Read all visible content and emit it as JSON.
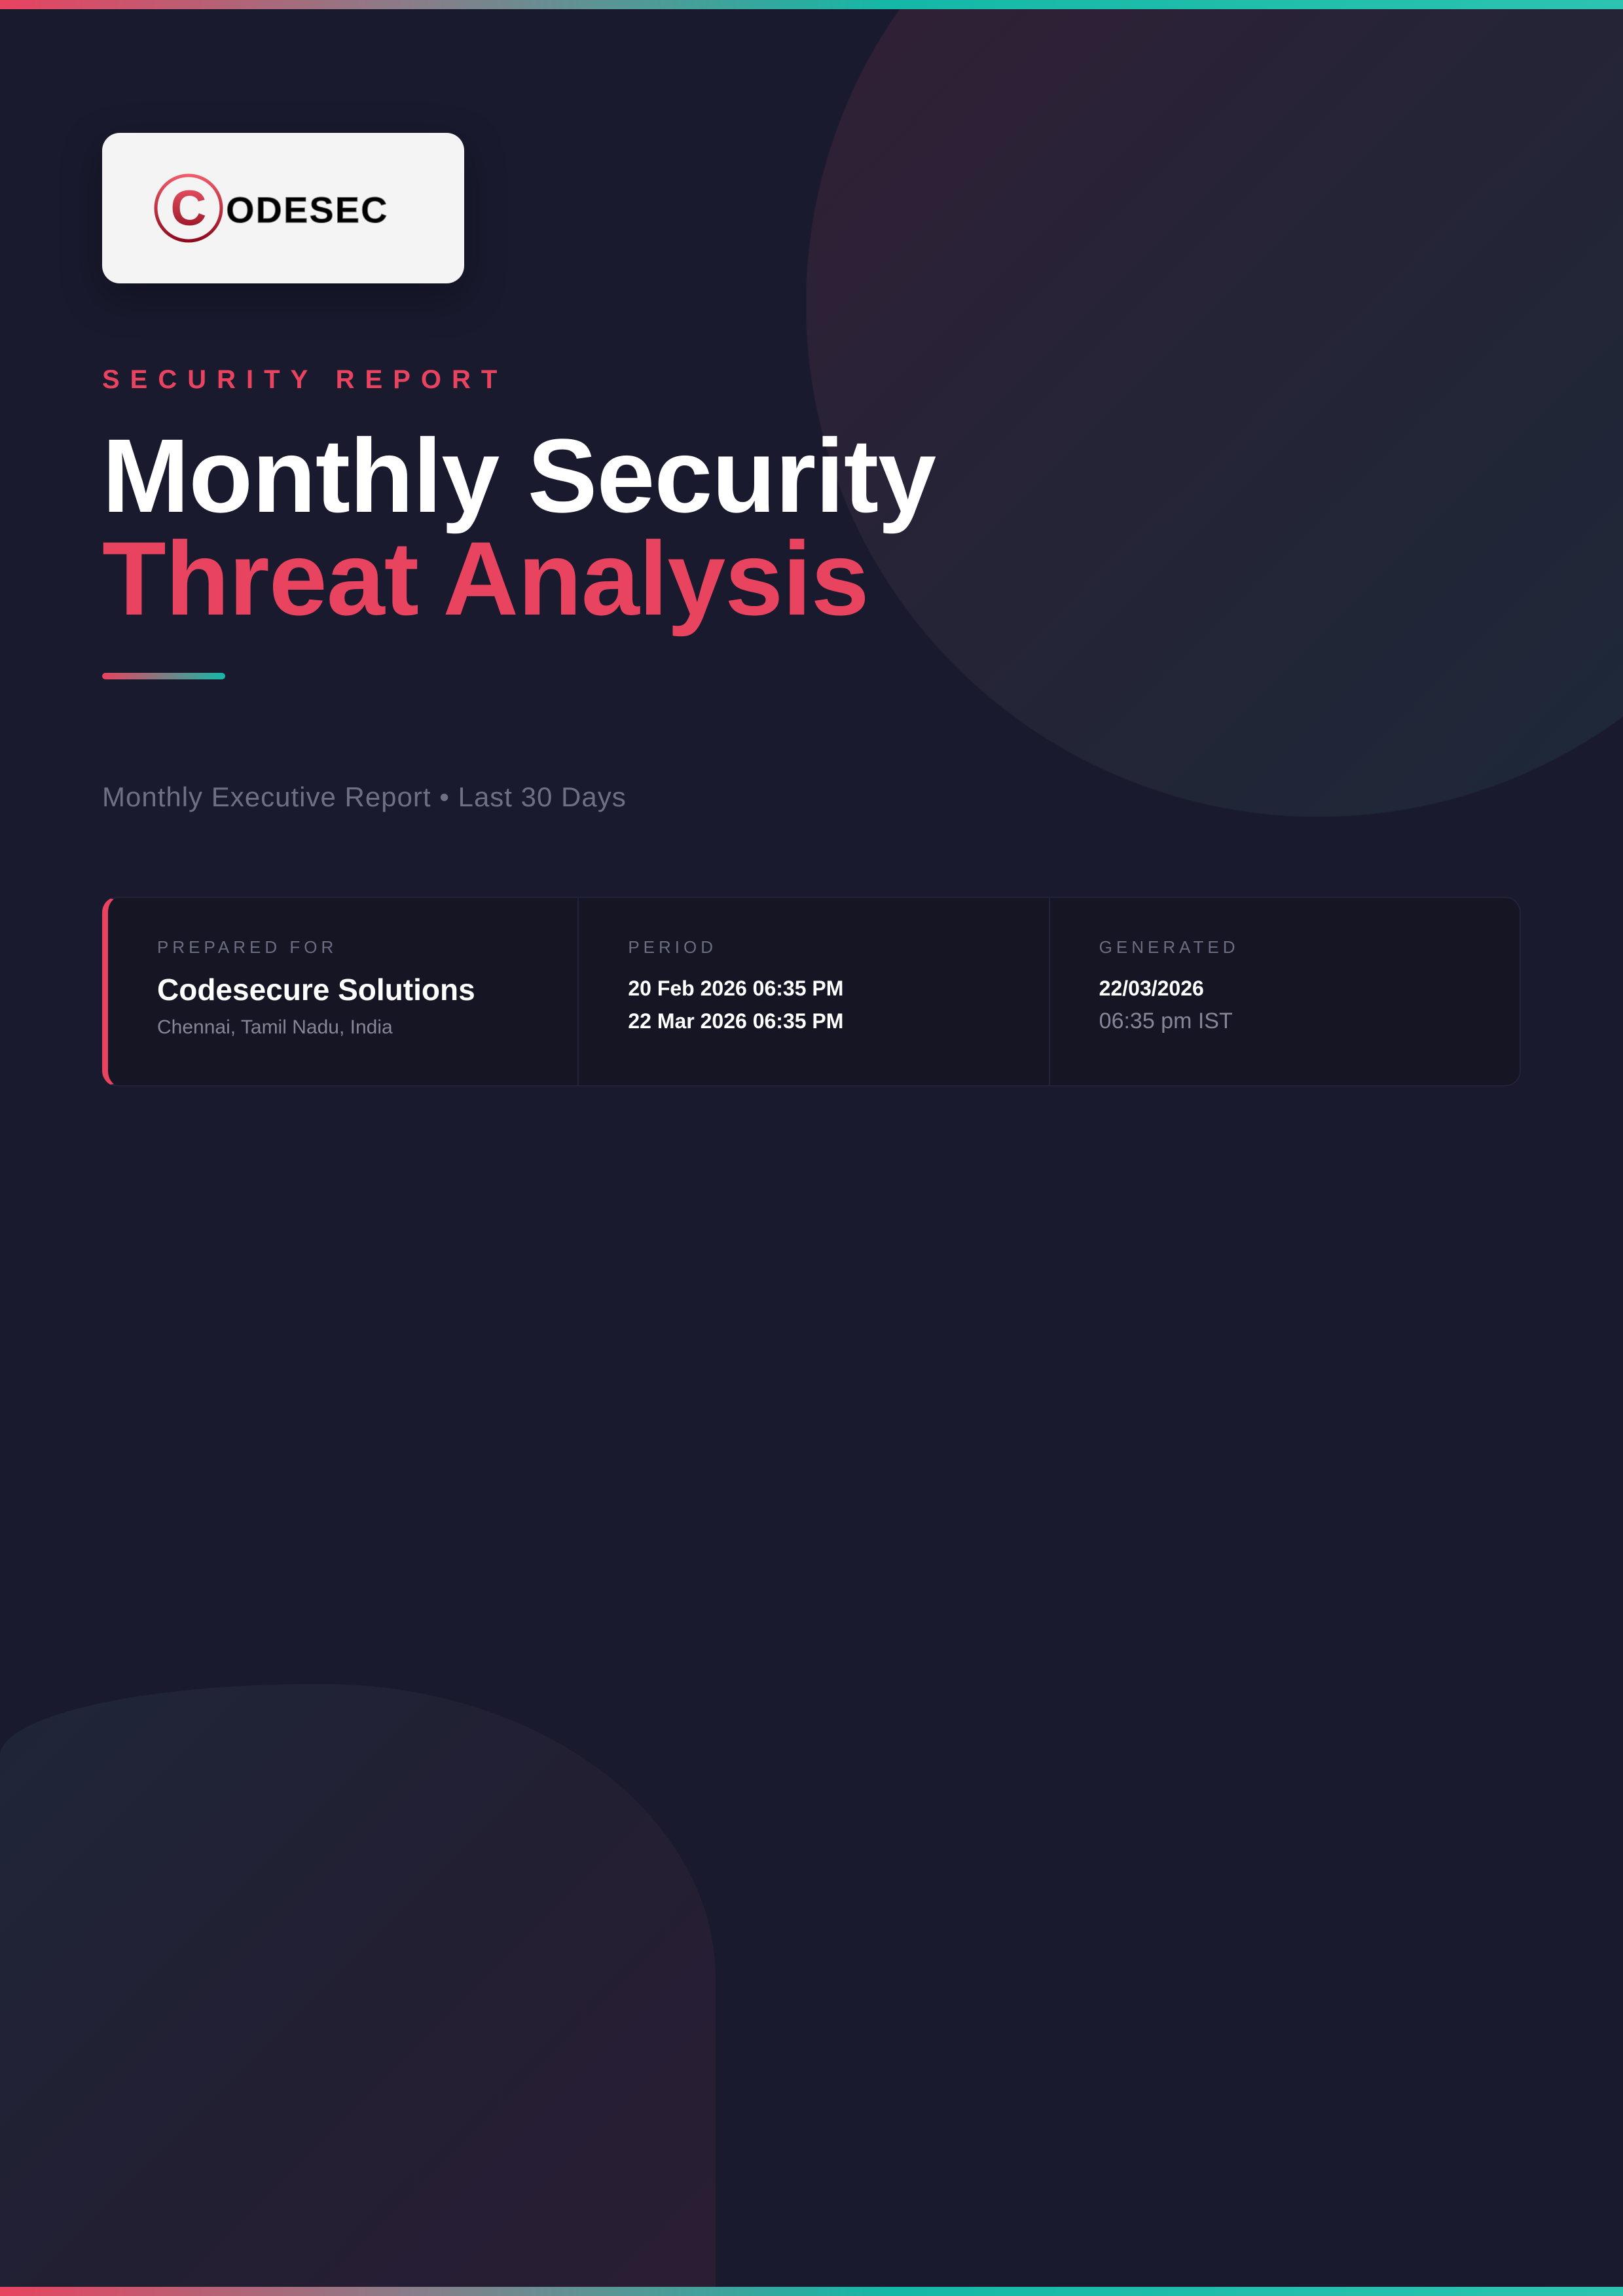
{
  "brand": {
    "logo_text": "CODESEC",
    "accent": "#e8435f",
    "teal": "#14b8a6"
  },
  "header": {
    "kicker": "SECURITY REPORT",
    "title_line1": "Monthly Security",
    "title_line2": "Threat Analysis",
    "subtitle": "Monthly Executive Report • Last 30 Days"
  },
  "info": {
    "prepared_for": {
      "label": "PREPARED FOR",
      "name": "Codesecure Solutions",
      "location": "Chennai, Tamil Nadu, India"
    },
    "period": {
      "label": "PERIOD",
      "start": "20 Feb 2026 06:35 PM",
      "end": "22 Mar 2026 06:35 PM"
    },
    "generated": {
      "label": "GENERATED",
      "date": "22/03/2026",
      "time": "06:35 pm IST"
    }
  }
}
